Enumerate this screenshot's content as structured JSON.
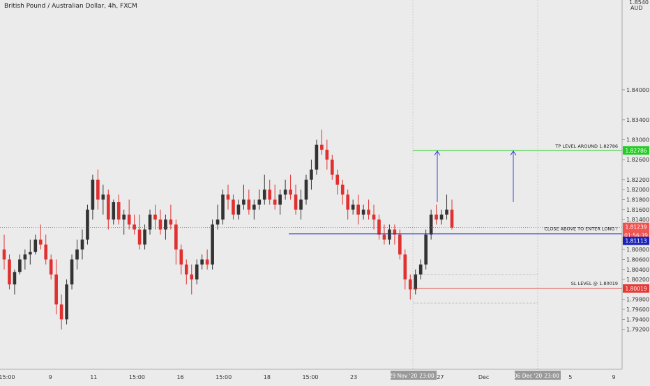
{
  "header": {
    "title": "British Pound / Australian Dollar, 4h, FXCM"
  },
  "axis": {
    "currency": "AUD",
    "top_partial": "1.8540"
  },
  "annotations": {
    "tp_text": "TP LEVEL AROUND 1.82786",
    "sl_text": "SL LEVEL @ 1.80019",
    "entry_text": "CLOSE ABOVE TO ENTER LONG !"
  },
  "price_tags": {
    "tp": "1.82786",
    "current": "1.81239",
    "countdown": "01:56:39",
    "entry": "1.81113",
    "sl": "1.80019"
  },
  "time_labels": {
    "cursor_date": "29 Nov '20",
    "cursor_time": "23:00",
    "future_date": "06 Dec '20",
    "future_time": "23:00"
  },
  "colors": {
    "background": "#ebebeb",
    "bull": "#333333",
    "bear": "#e03030",
    "tp_line": "#22cc22",
    "entry_line": "#2233cc",
    "sl_line": "#e53935",
    "arrow": "#2233cc"
  },
  "chart_data": {
    "type": "candlestick",
    "symbol": "GBPAUD",
    "timeframe": "4h",
    "ylim": [
      1.784,
      1.858
    ],
    "y_ticks": [
      "1.84000",
      "1.83400",
      "1.83000",
      "1.82600",
      "1.82200",
      "1.82000",
      "1.81800",
      "1.81600",
      "1.81400",
      "1.80800",
      "1.80600",
      "1.80400",
      "1.80200",
      "1.79800",
      "1.79600",
      "1.79400",
      "1.79200"
    ],
    "x_ticks": [
      "15:00",
      "9",
      "11",
      "15:00",
      "16",
      "15:00",
      "18",
      "15:00",
      "23",
      "25",
      "27",
      "Dec",
      "3",
      "5",
      "9"
    ],
    "levels": {
      "tp": 1.82786,
      "entry": 1.81113,
      "sl": 1.80019,
      "current": 1.81239
    },
    "candles": [
      [
        1.808,
        1.811,
        1.804,
        1.806
      ],
      [
        1.806,
        1.807,
        1.8,
        1.801
      ],
      [
        1.801,
        1.804,
        1.799,
        1.8035
      ],
      [
        1.8035,
        1.807,
        1.803,
        1.806
      ],
      [
        1.806,
        1.808,
        1.804,
        1.807
      ],
      [
        1.807,
        1.81,
        1.805,
        1.8075
      ],
      [
        1.8075,
        1.811,
        1.807,
        1.81
      ],
      [
        1.81,
        1.813,
        1.808,
        1.809
      ],
      [
        1.809,
        1.811,
        1.805,
        1.806
      ],
      [
        1.806,
        1.807,
        1.802,
        1.803
      ],
      [
        1.803,
        1.806,
        1.795,
        1.797
      ],
      [
        1.797,
        1.799,
        1.792,
        1.794
      ],
      [
        1.794,
        1.802,
        1.793,
        1.801
      ],
      [
        1.801,
        1.807,
        1.8,
        1.806
      ],
      [
        1.806,
        1.81,
        1.804,
        1.808
      ],
      [
        1.808,
        1.812,
        1.806,
        1.81
      ],
      [
        1.81,
        1.817,
        1.809,
        1.816
      ],
      [
        1.816,
        1.823,
        1.814,
        1.822
      ],
      [
        1.822,
        1.824,
        1.816,
        1.818
      ],
      [
        1.818,
        1.821,
        1.815,
        1.819
      ],
      [
        1.819,
        1.82,
        1.812,
        1.814
      ],
      [
        1.814,
        1.818,
        1.813,
        1.8175
      ],
      [
        1.8175,
        1.819,
        1.813,
        1.814
      ],
      [
        1.814,
        1.816,
        1.811,
        1.815
      ],
      [
        1.815,
        1.818,
        1.812,
        1.813
      ],
      [
        1.813,
        1.815,
        1.811,
        1.812
      ],
      [
        1.812,
        1.815,
        1.808,
        1.809
      ],
      [
        1.809,
        1.813,
        1.808,
        1.812
      ],
      [
        1.812,
        1.816,
        1.811,
        1.815
      ],
      [
        1.815,
        1.817,
        1.812,
        1.814
      ],
      [
        1.814,
        1.816,
        1.811,
        1.812
      ],
      [
        1.812,
        1.815,
        1.81,
        1.814
      ],
      [
        1.814,
        1.817,
        1.812,
        1.813
      ],
      [
        1.813,
        1.814,
        1.805,
        1.808
      ],
      [
        1.808,
        1.809,
        1.803,
        1.805
      ],
      [
        1.805,
        1.806,
        1.801,
        1.803
      ],
      [
        1.803,
        1.805,
        1.799,
        1.802
      ],
      [
        1.802,
        1.806,
        1.801,
        1.805
      ],
      [
        1.805,
        1.807,
        1.804,
        1.806
      ],
      [
        1.806,
        1.808,
        1.804,
        1.805
      ],
      [
        1.805,
        1.814,
        1.804,
        1.813
      ],
      [
        1.813,
        1.817,
        1.812,
        1.814
      ],
      [
        1.814,
        1.82,
        1.813,
        1.819
      ],
      [
        1.819,
        1.821,
        1.816,
        1.818
      ],
      [
        1.818,
        1.819,
        1.814,
        1.815
      ],
      [
        1.815,
        1.818,
        1.814,
        1.817
      ],
      [
        1.817,
        1.821,
        1.816,
        1.818
      ],
      [
        1.818,
        1.82,
        1.815,
        1.816
      ],
      [
        1.816,
        1.818,
        1.814,
        1.817
      ],
      [
        1.817,
        1.82,
        1.816,
        1.818
      ],
      [
        1.818,
        1.823,
        1.817,
        1.82
      ],
      [
        1.82,
        1.822,
        1.817,
        1.818
      ],
      [
        1.818,
        1.821,
        1.816,
        1.817
      ],
      [
        1.817,
        1.82,
        1.815,
        1.819
      ],
      [
        1.819,
        1.822,
        1.818,
        1.82
      ],
      [
        1.82,
        1.823,
        1.818,
        1.819
      ],
      [
        1.819,
        1.821,
        1.815,
        1.816
      ],
      [
        1.816,
        1.82,
        1.814,
        1.818
      ],
      [
        1.818,
        1.823,
        1.817,
        1.822
      ],
      [
        1.822,
        1.826,
        1.82,
        1.824
      ],
      [
        1.824,
        1.83,
        1.823,
        1.829
      ],
      [
        1.829,
        1.832,
        1.827,
        1.828
      ],
      [
        1.828,
        1.83,
        1.824,
        1.826
      ],
      [
        1.826,
        1.827,
        1.822,
        1.823
      ],
      [
        1.823,
        1.824,
        1.819,
        1.821
      ],
      [
        1.821,
        1.822,
        1.817,
        1.819
      ],
      [
        1.819,
        1.82,
        1.814,
        1.816
      ],
      [
        1.816,
        1.818,
        1.815,
        1.817
      ],
      [
        1.817,
        1.819,
        1.813,
        1.815
      ],
      [
        1.815,
        1.817,
        1.814,
        1.816
      ],
      [
        1.816,
        1.818,
        1.814,
        1.815
      ],
      [
        1.815,
        1.817,
        1.812,
        1.814
      ],
      [
        1.814,
        1.815,
        1.81,
        1.811
      ],
      [
        1.811,
        1.813,
        1.809,
        1.81
      ],
      [
        1.81,
        1.813,
        1.809,
        1.812
      ],
      [
        1.812,
        1.813,
        1.809,
        1.811
      ],
      [
        1.811,
        1.812,
        1.806,
        1.807
      ],
      [
        1.807,
        1.808,
        1.8,
        1.802
      ],
      [
        1.802,
        1.803,
        1.798,
        1.8
      ],
      [
        1.8,
        1.804,
        1.799,
        1.803
      ],
      [
        1.803,
        1.806,
        1.802,
        1.805
      ],
      [
        1.805,
        1.812,
        1.804,
        1.811
      ],
      [
        1.811,
        1.816,
        1.81,
        1.815
      ],
      [
        1.815,
        1.817,
        1.813,
        1.814
      ],
      [
        1.814,
        1.816,
        1.813,
        1.815
      ],
      [
        1.815,
        1.819,
        1.814,
        1.816
      ],
      [
        1.816,
        1.818,
        1.812,
        1.8124
      ]
    ]
  }
}
